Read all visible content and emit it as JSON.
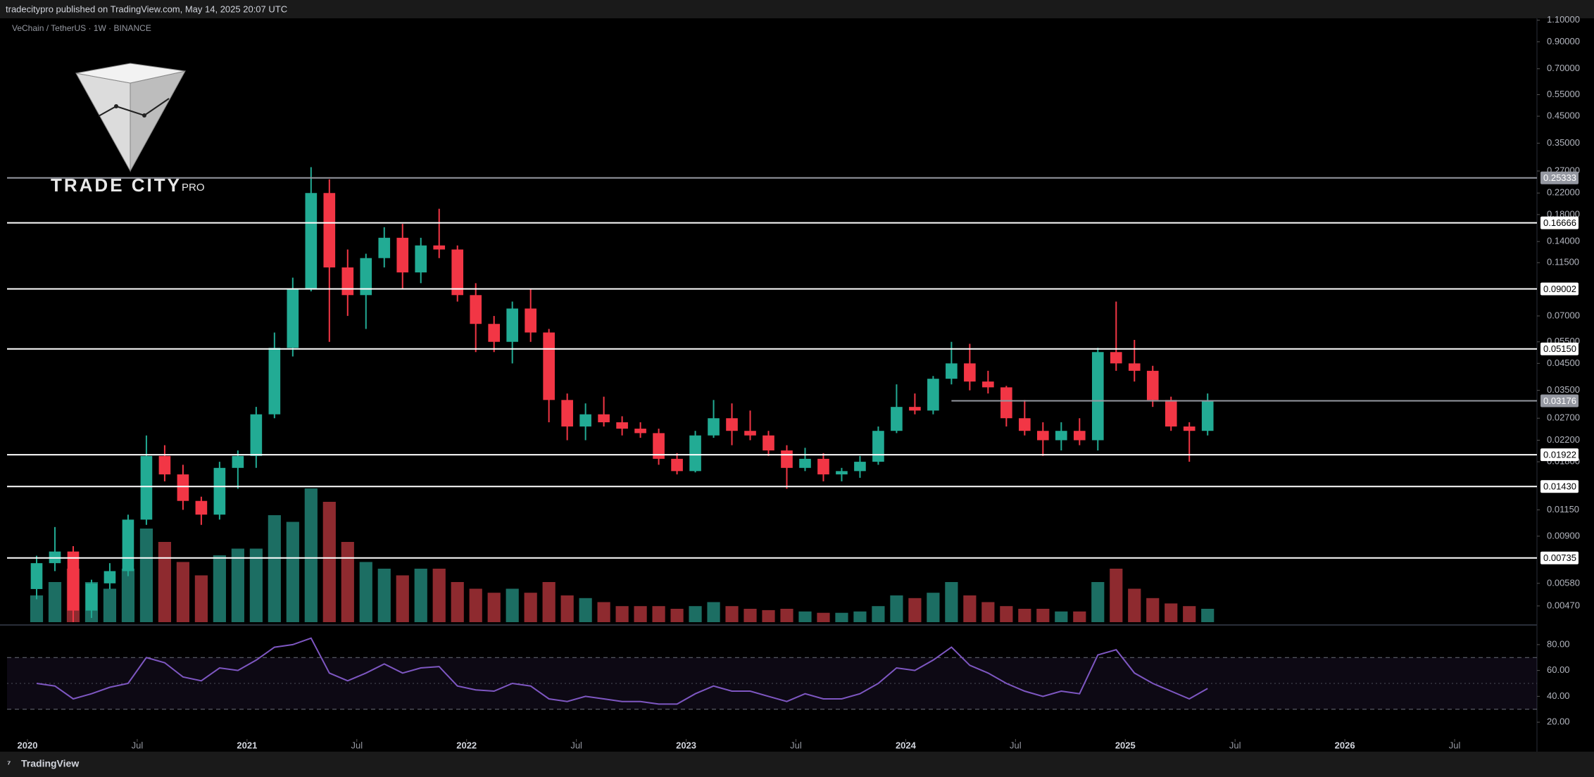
{
  "header": {
    "published": "tradecitypro published on TradingView.com, May 14, 2025 20:07 UTC",
    "symbol": "VeChain / TetherUS · 1W · BINANCE"
  },
  "logo": {
    "title": "TRADE CITY",
    "suffix": "PRO"
  },
  "footer": {
    "brand": "TradingView"
  },
  "chart_data": [
    {
      "type": "candlestick",
      "log_scale": true,
      "up_color": "#22ab94",
      "down_color": "#f23645",
      "volume_up_color": "#1c6e63",
      "volume_down_color": "#8e2a2f",
      "ylim": [
        0.00404,
        1.12
      ],
      "yticks": [
        {
          "value": 1.1,
          "label": "1.10000"
        },
        {
          "value": 0.9,
          "label": "0.90000"
        },
        {
          "value": 0.7,
          "label": "0.70000"
        },
        {
          "value": 0.55,
          "label": "0.55000"
        },
        {
          "value": 0.45,
          "label": "0.45000"
        },
        {
          "value": 0.35,
          "label": "0.35000"
        },
        {
          "value": 0.27,
          "label": "0.27000"
        },
        {
          "value": 0.22,
          "label": "0.22000"
        },
        {
          "value": 0.18,
          "label": "0.18000"
        },
        {
          "value": 0.14,
          "label": "0.14000"
        },
        {
          "value": 0.115,
          "label": "0.11500"
        },
        {
          "value": 0.07,
          "label": "0.07000"
        },
        {
          "value": 0.055,
          "label": "0.05500"
        },
        {
          "value": 0.045,
          "label": "0.04500"
        },
        {
          "value": 0.035,
          "label": "0.03500"
        },
        {
          "value": 0.027,
          "label": "0.02700"
        },
        {
          "value": 0.022,
          "label": "0.02200"
        },
        {
          "value": 0.018,
          "label": "0.01800"
        },
        {
          "value": 0.0115,
          "label": "0.01150"
        },
        {
          "value": 0.009,
          "label": "0.00900"
        },
        {
          "value": 0.0058,
          "label": "0.00580"
        },
        {
          "value": 0.0047,
          "label": "0.00470"
        }
      ],
      "xlim": [
        2019.907,
        2026.875
      ],
      "xticks": [
        {
          "value": 2020,
          "label": "2020"
        },
        {
          "value": 2020.5,
          "label": "Jul"
        },
        {
          "value": 2021,
          "label": "2021"
        },
        {
          "value": 2021.5,
          "label": "Jul"
        },
        {
          "value": 2022,
          "label": "2022"
        },
        {
          "value": 2022.5,
          "label": "Jul"
        },
        {
          "value": 2023,
          "label": "2023"
        },
        {
          "value": 2023.5,
          "label": "Jul"
        },
        {
          "value": 2024,
          "label": "2024"
        },
        {
          "value": 2024.5,
          "label": "Jul"
        },
        {
          "value": 2025,
          "label": "2025"
        },
        {
          "value": 2025.5,
          "label": "Jul"
        },
        {
          "value": 2026,
          "label": "2026"
        },
        {
          "value": 2026.5,
          "label": "Jul"
        }
      ],
      "levels": [
        {
          "value": 0.25333,
          "label": "0.25333",
          "color": "#9598a1"
        },
        {
          "value": 0.16666,
          "label": "0.16666",
          "color": "#ffffff"
        },
        {
          "value": 0.09002,
          "label": "0.09002",
          "color": "#ffffff"
        },
        {
          "value": 0.0515,
          "label": "0.05150",
          "color": "#ffffff"
        },
        {
          "value": 0.03176,
          "label": "0.03176",
          "color": "#9598a1",
          "from": "2024-03"
        },
        {
          "value": 0.01922,
          "label": "0.01922",
          "color": "#ffffff"
        },
        {
          "value": 0.0143,
          "label": "0.01430",
          "color": "#ffffff"
        },
        {
          "value": 0.00735,
          "label": "0.00735",
          "color": "#ffffff"
        }
      ],
      "x": [
        "2020-01",
        "2020-02",
        "2020-03",
        "2020-04",
        "2020-05",
        "2020-06",
        "2020-07",
        "2020-08",
        "2020-09",
        "2020-10",
        "2020-11",
        "2020-12",
        "2021-01",
        "2021-02",
        "2021-03",
        "2021-04",
        "2021-05",
        "2021-06",
        "2021-07",
        "2021-08",
        "2021-09",
        "2021-10",
        "2021-11",
        "2021-12",
        "2022-01",
        "2022-02",
        "2022-03",
        "2022-04",
        "2022-05",
        "2022-06",
        "2022-07",
        "2022-08",
        "2022-09",
        "2022-10",
        "2022-11",
        "2022-12",
        "2023-01",
        "2023-02",
        "2023-03",
        "2023-04",
        "2023-05",
        "2023-06",
        "2023-07",
        "2023-08",
        "2023-09",
        "2023-10",
        "2023-11",
        "2023-12",
        "2024-01",
        "2024-02",
        "2024-03",
        "2024-04",
        "2024-05",
        "2024-06",
        "2024-07",
        "2024-08",
        "2024-09",
        "2024-10",
        "2024-11",
        "2024-12",
        "2025-01",
        "2025-02",
        "2025-03",
        "2025-04",
        "2025-05"
      ],
      "open": [
        0.0055,
        0.007,
        0.0078,
        0.0045,
        0.0058,
        0.0065,
        0.0105,
        0.019,
        0.016,
        0.0125,
        0.011,
        0.017,
        0.019,
        0.028,
        0.052,
        0.09,
        0.22,
        0.11,
        0.085,
        0.12,
        0.145,
        0.105,
        0.135,
        0.13,
        0.085,
        0.065,
        0.055,
        0.075,
        0.06,
        0.032,
        0.025,
        0.028,
        0.026,
        0.0245,
        0.0235,
        0.0185,
        0.0165,
        0.023,
        0.027,
        0.024,
        0.023,
        0.02,
        0.017,
        0.0185,
        0.016,
        0.0165,
        0.018,
        0.024,
        0.03,
        0.029,
        0.039,
        0.045,
        0.038,
        0.036,
        0.027,
        0.024,
        0.022,
        0.024,
        0.022,
        0.05,
        0.045,
        0.042,
        0.032,
        0.025,
        0.024
      ],
      "high": [
        0.0075,
        0.0098,
        0.0082,
        0.006,
        0.007,
        0.011,
        0.023,
        0.021,
        0.0175,
        0.013,
        0.018,
        0.02,
        0.03,
        0.06,
        0.1,
        0.28,
        0.25,
        0.13,
        0.125,
        0.16,
        0.165,
        0.145,
        0.19,
        0.135,
        0.095,
        0.07,
        0.08,
        0.09,
        0.062,
        0.034,
        0.031,
        0.033,
        0.0275,
        0.026,
        0.0245,
        0.0195,
        0.024,
        0.032,
        0.031,
        0.029,
        0.024,
        0.021,
        0.0205,
        0.0195,
        0.017,
        0.019,
        0.025,
        0.037,
        0.034,
        0.04,
        0.055,
        0.054,
        0.042,
        0.0365,
        0.032,
        0.026,
        0.026,
        0.027,
        0.052,
        0.08,
        0.056,
        0.044,
        0.033,
        0.026,
        0.034
      ],
      "low": [
        0.005,
        0.0065,
        0.004,
        0.0042,
        0.0055,
        0.0062,
        0.01,
        0.015,
        0.0115,
        0.01,
        0.0105,
        0.014,
        0.017,
        0.027,
        0.048,
        0.088,
        0.055,
        0.07,
        0.062,
        0.11,
        0.09,
        0.095,
        0.12,
        0.08,
        0.05,
        0.05,
        0.045,
        0.055,
        0.026,
        0.022,
        0.022,
        0.025,
        0.023,
        0.0225,
        0.0175,
        0.016,
        0.0163,
        0.0225,
        0.021,
        0.022,
        0.019,
        0.014,
        0.0165,
        0.015,
        0.015,
        0.0155,
        0.0175,
        0.0235,
        0.028,
        0.028,
        0.037,
        0.035,
        0.034,
        0.025,
        0.023,
        0.019,
        0.02,
        0.021,
        0.02,
        0.042,
        0.038,
        0.03,
        0.024,
        0.018,
        0.023
      ],
      "close": [
        0.007,
        0.0078,
        0.0045,
        0.0058,
        0.0065,
        0.0105,
        0.019,
        0.016,
        0.0125,
        0.011,
        0.017,
        0.019,
        0.028,
        0.052,
        0.09,
        0.22,
        0.11,
        0.085,
        0.12,
        0.145,
        0.105,
        0.135,
        0.13,
        0.085,
        0.065,
        0.055,
        0.075,
        0.06,
        0.032,
        0.025,
        0.028,
        0.026,
        0.0245,
        0.0235,
        0.0185,
        0.0165,
        0.023,
        0.027,
        0.024,
        0.023,
        0.02,
        0.017,
        0.0185,
        0.016,
        0.0165,
        0.018,
        0.024,
        0.03,
        0.029,
        0.039,
        0.045,
        0.038,
        0.036,
        0.027,
        0.024,
        0.022,
        0.024,
        0.022,
        0.05,
        0.045,
        0.042,
        0.032,
        0.025,
        0.024,
        0.0318
      ],
      "volume": [
        20,
        30,
        40,
        30,
        25,
        40,
        70,
        60,
        45,
        35,
        50,
        55,
        55,
        80,
        75,
        100,
        90,
        60,
        45,
        40,
        35,
        40,
        40,
        30,
        25,
        22,
        25,
        22,
        30,
        20,
        18,
        15,
        12,
        12,
        12,
        10,
        12,
        15,
        12,
        10,
        9,
        10,
        8,
        7,
        7,
        8,
        12,
        20,
        18,
        22,
        30,
        20,
        15,
        12,
        10,
        10,
        8,
        8,
        30,
        40,
        25,
        18,
        14,
        12,
        10
      ]
    },
    {
      "type": "line",
      "color": "#7e57c2",
      "band": [
        30,
        70
      ],
      "midline": 50,
      "ylim": [
        7,
        93
      ],
      "yticks": [
        {
          "value": 80,
          "label": "80.00"
        },
        {
          "value": 60,
          "label": "60.00"
        },
        {
          "value": 40,
          "label": "40.00"
        },
        {
          "value": 20,
          "label": "20.00"
        }
      ],
      "values": [
        50,
        48,
        38,
        42,
        47,
        50,
        70,
        66,
        55,
        52,
        62,
        60,
        68,
        78,
        80,
        85,
        58,
        52,
        58,
        65,
        58,
        62,
        63,
        48,
        45,
        44,
        50,
        48,
        38,
        36,
        40,
        38,
        36,
        36,
        34,
        34,
        42,
        48,
        44,
        44,
        40,
        36,
        42,
        38,
        38,
        42,
        50,
        62,
        60,
        68,
        78,
        64,
        58,
        50,
        44,
        40,
        44,
        42,
        72,
        76,
        58,
        50,
        44,
        38,
        46
      ]
    }
  ]
}
